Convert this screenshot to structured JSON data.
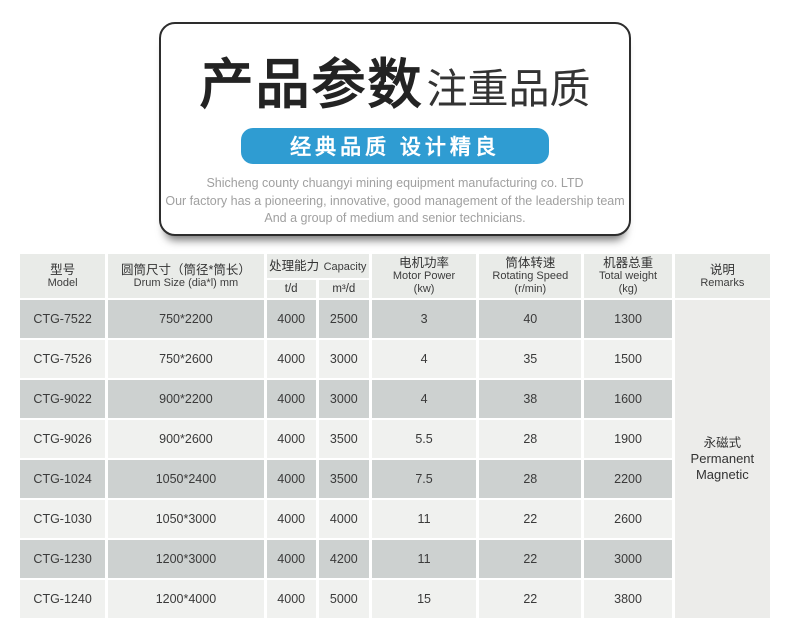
{
  "colors": {
    "banner_blue": "#2f9cd2",
    "header_bg": "#e9ebe8",
    "row_dark": "#cdd1d0",
    "row_light": "#f0f1ef",
    "remarks_bg": "#ececea"
  },
  "header_card": {
    "title_main": "产品参数",
    "title_sub": "注重品质",
    "banner": "经典品质  设计精良",
    "company_line1": "Shicheng county chuangyi mining equipment manufacturing co. LTD",
    "company_line2": "Our factory has a pioneering, innovative, good management of the leadership team",
    "company_line3": "And a group of medium and senior technicians."
  },
  "table": {
    "headers": {
      "model_zh": "型号",
      "model_en": "Model",
      "drum_zh": "圆筒尺寸（筒径*筒长）",
      "drum_en": "Drum Size (dia*l) mm",
      "capacity_zh": "处理能力",
      "capacity_en": "Capacity",
      "capacity_sub1": "t/d",
      "capacity_sub2": "m³/d",
      "motor_zh": "电机功率",
      "motor_en": "Motor Power",
      "motor_unit": "(kw)",
      "speed_zh": "筒体转速",
      "speed_en": "Rotating Speed",
      "speed_unit": "(r/min)",
      "weight_zh": "机器总重",
      "weight_en": "Total weight",
      "weight_unit": "(kg)",
      "remarks_zh": "说明",
      "remarks_en": "Remarks"
    },
    "remarks_value": {
      "zh": "永磁式",
      "en1": "Permanent",
      "en2": "Magnetic"
    },
    "rows": [
      [
        "CTG-7522",
        "750*2200",
        "4000",
        "2500",
        "3",
        "40",
        "1300"
      ],
      [
        "CTG-7526",
        "750*2600",
        "4000",
        "3000",
        "4",
        "35",
        "1500"
      ],
      [
        "CTG-9022",
        "900*2200",
        "4000",
        "3000",
        "4",
        "38",
        "1600"
      ],
      [
        "CTG-9026",
        "900*2600",
        "4000",
        "3500",
        "5.5",
        "28",
        "1900"
      ],
      [
        "CTG-1024",
        "1050*2400",
        "4000",
        "3500",
        "7.5",
        "28",
        "2200"
      ],
      [
        "CTG-1030",
        "1050*3000",
        "4000",
        "4000",
        "11",
        "22",
        "2600"
      ],
      [
        "CTG-1230",
        "1200*3000",
        "4000",
        "4200",
        "11",
        "22",
        "3000"
      ],
      [
        "CTG-1240",
        "1200*4000",
        "4000",
        "5000",
        "15",
        "22",
        "3800"
      ]
    ]
  }
}
